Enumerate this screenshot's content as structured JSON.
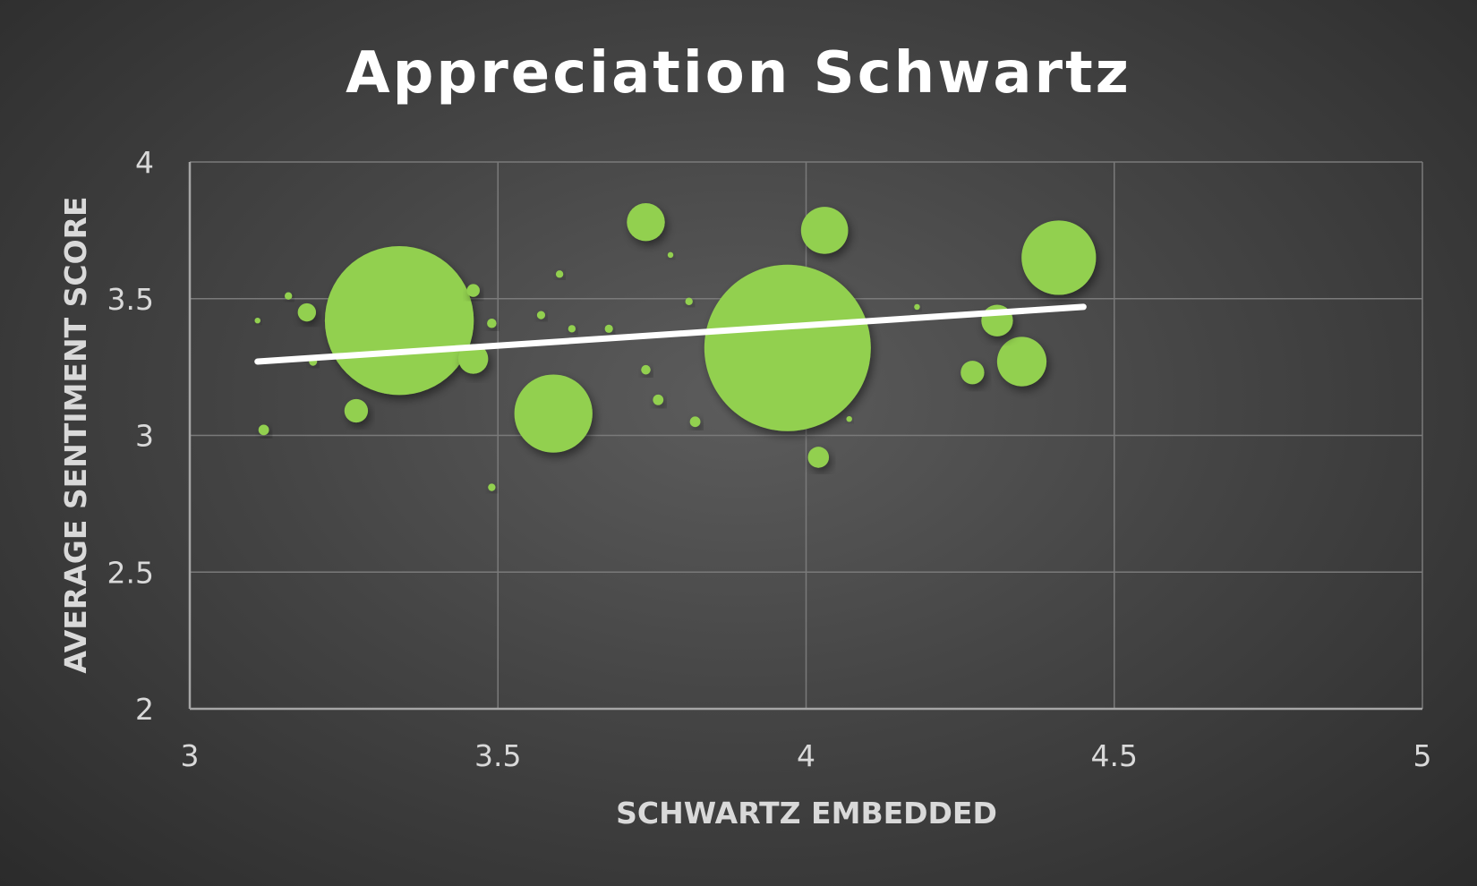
{
  "chart_data": {
    "type": "scatter",
    "variant": "bubble",
    "title": "Appreciation Schwartz",
    "xlabel": "SCHWARTZ EMBEDDED",
    "ylabel": "AVERAGE SENTIMENT SCORE",
    "xlim": [
      3,
      5
    ],
    "ylim": [
      2,
      4
    ],
    "xticks": [
      "3",
      "3.5",
      "4",
      "4.5",
      "5"
    ],
    "yticks": [
      "2",
      "2.5",
      "3",
      "3.5",
      "4"
    ],
    "grid": true,
    "legend": "none",
    "colors": {
      "bubble": "#92d050",
      "trendline": "#ffffff",
      "grid": "#7a7a7a",
      "axis": "#a6a6a6"
    },
    "series": [
      {
        "points": [
          {
            "x": 3.11,
            "y": 3.42,
            "size": 0.3
          },
          {
            "x": 3.12,
            "y": 3.02,
            "size": 1
          },
          {
            "x": 3.16,
            "y": 3.51,
            "size": 0.5
          },
          {
            "x": 3.19,
            "y": 3.45,
            "size": 3
          },
          {
            "x": 3.2,
            "y": 3.27,
            "size": 0.6
          },
          {
            "x": 3.27,
            "y": 3.09,
            "size": 5
          },
          {
            "x": 3.34,
            "y": 3.42,
            "size": 200
          },
          {
            "x": 3.46,
            "y": 3.28,
            "size": 8
          },
          {
            "x": 3.46,
            "y": 3.53,
            "size": 1.5
          },
          {
            "x": 3.49,
            "y": 3.41,
            "size": 0.8
          },
          {
            "x": 3.49,
            "y": 2.81,
            "size": 0.5
          },
          {
            "x": 3.57,
            "y": 3.44,
            "size": 0.6
          },
          {
            "x": 3.59,
            "y": 3.08,
            "size": 55
          },
          {
            "x": 3.6,
            "y": 3.59,
            "size": 0.5
          },
          {
            "x": 3.62,
            "y": 3.39,
            "size": 0.5
          },
          {
            "x": 3.68,
            "y": 3.39,
            "size": 0.6
          },
          {
            "x": 3.74,
            "y": 3.78,
            "size": 13
          },
          {
            "x": 3.74,
            "y": 3.24,
            "size": 0.8
          },
          {
            "x": 3.76,
            "y": 3.13,
            "size": 1
          },
          {
            "x": 3.78,
            "y": 3.66,
            "size": 0.3
          },
          {
            "x": 3.81,
            "y": 3.49,
            "size": 0.5
          },
          {
            "x": 3.82,
            "y": 3.05,
            "size": 1
          },
          {
            "x": 3.97,
            "y": 3.32,
            "size": 250
          },
          {
            "x": 4.02,
            "y": 2.92,
            "size": 4
          },
          {
            "x": 4.03,
            "y": 3.75,
            "size": 20
          },
          {
            "x": 4.07,
            "y": 3.06,
            "size": 0.3
          },
          {
            "x": 4.18,
            "y": 3.47,
            "size": 0.3
          },
          {
            "x": 4.27,
            "y": 3.23,
            "size": 5
          },
          {
            "x": 4.31,
            "y": 3.42,
            "size": 9
          },
          {
            "x": 4.35,
            "y": 3.27,
            "size": 22
          },
          {
            "x": 4.41,
            "y": 3.65,
            "size": 50
          }
        ]
      }
    ],
    "trendline": {
      "type": "linear",
      "x": [
        3.11,
        4.45
      ],
      "y": [
        3.27,
        3.47
      ]
    }
  }
}
